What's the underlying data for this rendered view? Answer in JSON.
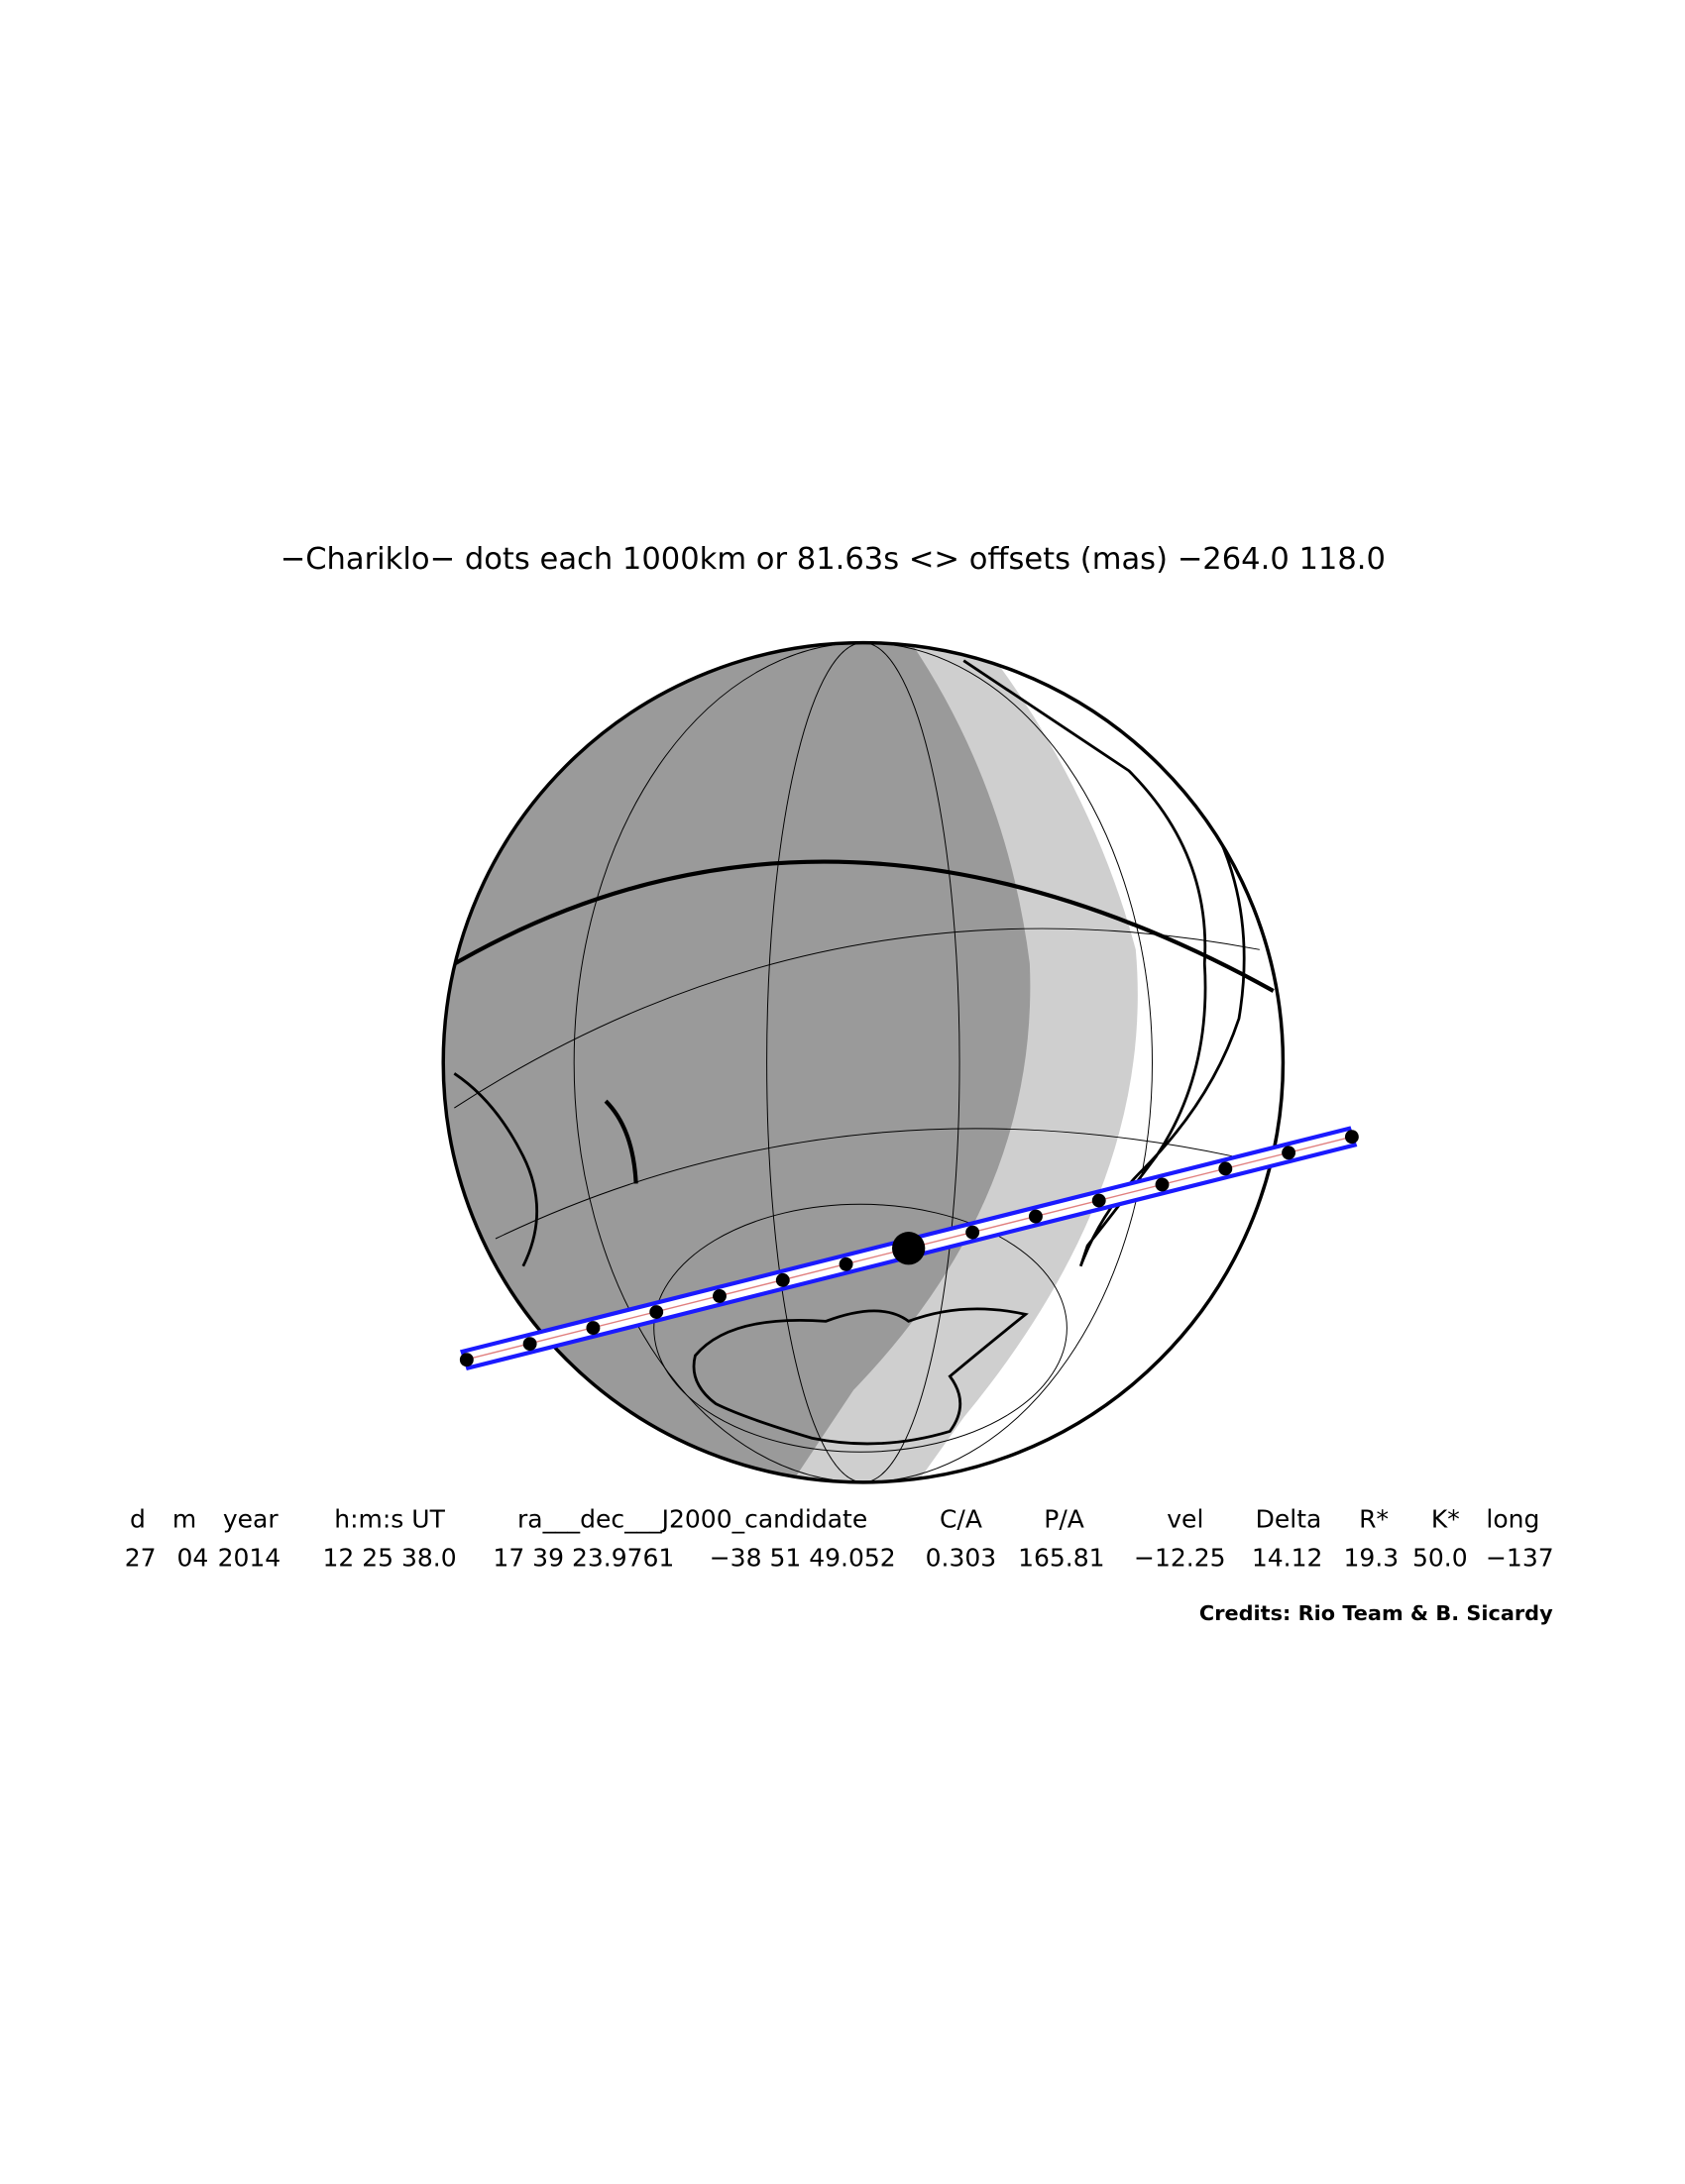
{
  "title": "−Chariklo− dots each 1000km or 81.63s <> offsets (mas) −264.0  118.0",
  "table": {
    "header": [
      "d",
      "m",
      "year",
      "h:m:s UT",
      "ra___dec___J2000_candidate",
      "C/A",
      "P/A",
      "vel",
      "Delta",
      "R*",
      "K*",
      "long"
    ],
    "rows": [
      [
        "27",
        "04",
        "2014",
        "12 25 38.0",
        "17 39 23.9761",
        "−38 51 49.052",
        "0.303",
        "165.81",
        "−12.25",
        "14.12",
        "19.3",
        "50.0",
        "−137"
      ]
    ]
  },
  "credits": "Credits: Rio Team & B. Sicardy"
}
